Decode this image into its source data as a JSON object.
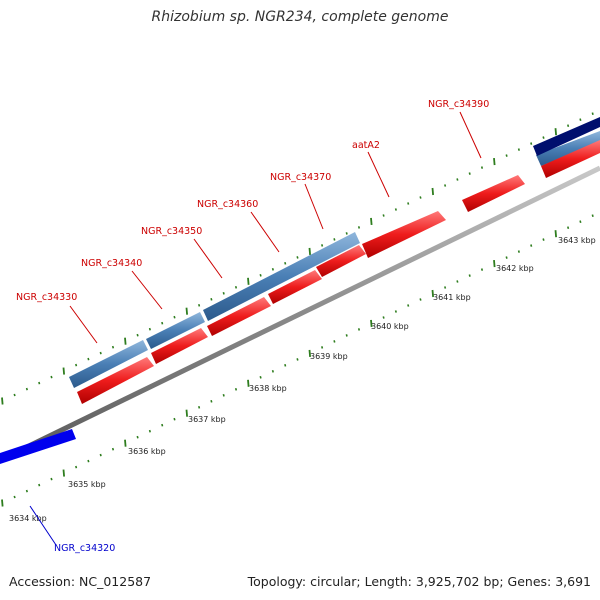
{
  "title": "Rhizobium sp. NGR234, complete genome",
  "footer": {
    "accession": "Accession: NC_012587",
    "topology": "Topology: circular; Length: 3,925,702 bp; Genes: 3,691"
  },
  "colors": {
    "backbone": "#8c8c8c",
    "forward_blue": "#4a7fb5",
    "reverse_red": "#e8141c",
    "dark_navy": "#000f6e",
    "bright_blue": "#0000ee",
    "tick_green": "#2e7d1e",
    "label_red": "#cc0000",
    "label_blue": "#0000cc"
  },
  "genes": [
    {
      "label": "NGR_c34320",
      "label_color": "blue"
    },
    {
      "label": "NGR_c34330",
      "label_color": "red"
    },
    {
      "label": "NGR_c34340",
      "label_color": "red"
    },
    {
      "label": "NGR_c34350",
      "label_color": "red"
    },
    {
      "label": "NGR_c34360",
      "label_color": "red"
    },
    {
      "label": "NGR_c34370",
      "label_color": "red"
    },
    {
      "label": "aatA2",
      "label_color": "red"
    },
    {
      "label": "NGR_c34390",
      "label_color": "red"
    }
  ],
  "scale_ticks": [
    "3634 kbp",
    "3635 kbp",
    "3636 kbp",
    "3637 kbp",
    "3638 kbp",
    "3639 kbp",
    "3640 kbp",
    "3641 kbp",
    "3642 kbp",
    "3643 kbp"
  ]
}
